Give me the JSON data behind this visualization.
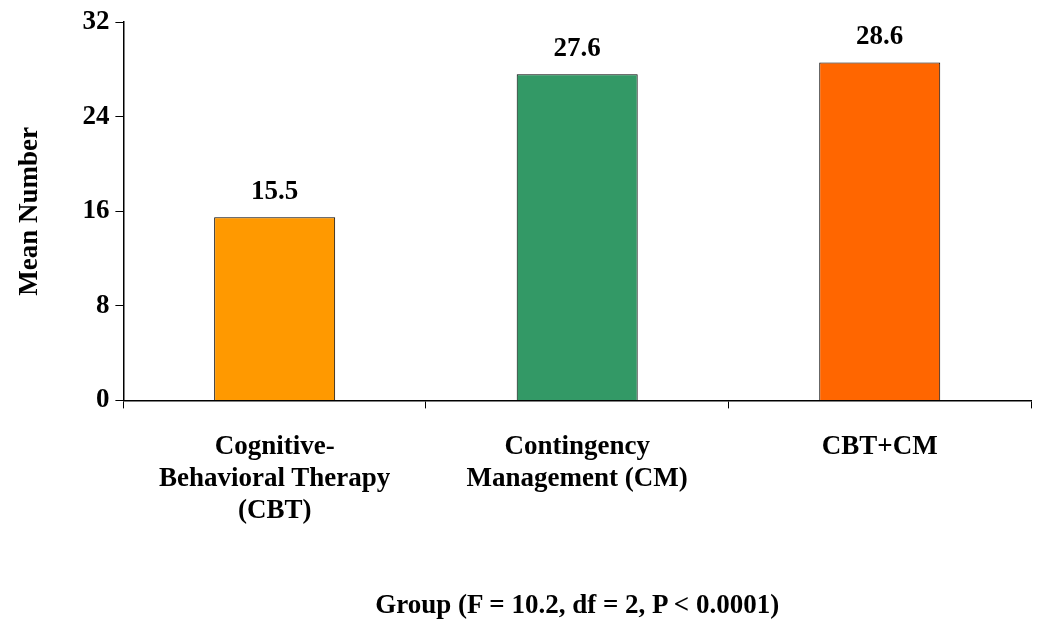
{
  "chart_data": {
    "type": "bar",
    "xlabel": "Group (F = 10.2, df = 2, P < 0.0001)",
    "ylabel": "Mean Number",
    "categories": [
      "Cognitive-Behavioral Therapy (CBT)",
      "Contingency Management (CM)",
      "CBT+CM"
    ],
    "values": [
      15.5,
      27.6,
      28.6
    ],
    "colors": [
      "#ff9900",
      "#339966",
      "#ff6600"
    ],
    "ylim": [
      0,
      32
    ],
    "yticks": [
      0,
      8,
      16,
      24,
      32
    ],
    "grid": false,
    "legend": false,
    "data_labels": true
  }
}
